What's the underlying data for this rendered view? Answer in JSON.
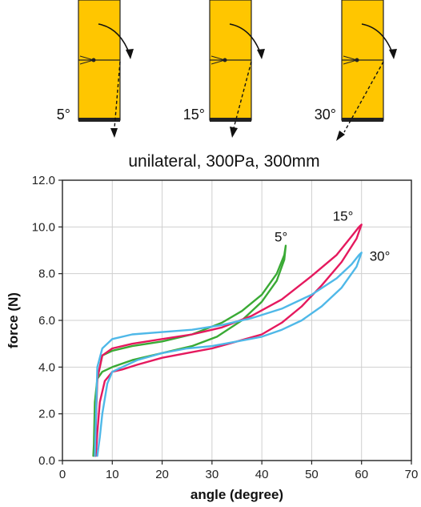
{
  "diagram": {
    "panels": [
      {
        "label": "5°",
        "angle_deg": 5
      },
      {
        "label": "15°",
        "angle_deg": 15
      },
      {
        "label": "30°",
        "angle_deg": 30
      }
    ],
    "panel_color": "#FFC600",
    "condition_text": "unilateral, 300Pa,  300mm"
  },
  "chart_data": {
    "type": "line",
    "title": "",
    "xlabel": "angle (degree)",
    "ylabel": "force (N)",
    "xlim": [
      0,
      70
    ],
    "ylim": [
      0,
      12
    ],
    "x_ticks": [
      "0",
      "10",
      "20",
      "30",
      "40",
      "50",
      "60",
      "70"
    ],
    "y_ticks": [
      "0.0",
      "2.0",
      "4.0",
      "6.0",
      "8.0",
      "10.0",
      "12.0"
    ],
    "grid": true,
    "series": [
      {
        "name": "5°",
        "color": "#3AAA35",
        "x": [
          6.2,
          6.5,
          7,
          8,
          10,
          14,
          20,
          26,
          32,
          36,
          40,
          43,
          44.5,
          44.8,
          44.5,
          43,
          40,
          36,
          31,
          26,
          20,
          14,
          10,
          8,
          7,
          6.5,
          6.3
        ],
        "y": [
          0.2,
          1.5,
          3.5,
          4.5,
          4.7,
          4.9,
          5.1,
          5.4,
          5.9,
          6.4,
          7.1,
          8.0,
          8.8,
          9.2,
          8.6,
          7.7,
          6.8,
          6.0,
          5.3,
          4.9,
          4.6,
          4.3,
          4.0,
          3.8,
          3.5,
          2.5,
          0.5
        ]
      },
      {
        "name": "15°",
        "color": "#E5195E",
        "x": [
          6.5,
          7,
          8,
          10,
          14,
          20,
          26,
          32,
          38,
          44,
          50,
          55,
          58,
          59.5,
          60,
          59,
          56,
          52,
          48,
          44,
          40,
          35,
          30,
          25,
          20,
          15,
          12,
          10,
          8.5,
          7.5,
          7,
          6.7
        ],
        "y": [
          0.2,
          3.5,
          4.5,
          4.8,
          5.0,
          5.2,
          5.4,
          5.7,
          6.2,
          6.9,
          7.9,
          8.8,
          9.6,
          10.0,
          10.1,
          9.5,
          8.5,
          7.5,
          6.6,
          5.9,
          5.4,
          5.1,
          4.8,
          4.6,
          4.4,
          4.1,
          3.9,
          3.8,
          3.4,
          2.5,
          1.2,
          0.2
        ]
      },
      {
        "name": "30°",
        "color": "#4FB8E8",
        "x": [
          6.5,
          7,
          8,
          10,
          14,
          20,
          26,
          32,
          38,
          44,
          50,
          55,
          58,
          59.5,
          60,
          59,
          56,
          52,
          48,
          44,
          40,
          35,
          30,
          25,
          20,
          15,
          12,
          10,
          9,
          8,
          7.5,
          7
        ],
        "y": [
          0.2,
          4.0,
          4.8,
          5.2,
          5.4,
          5.5,
          5.6,
          5.8,
          6.1,
          6.5,
          7.1,
          7.8,
          8.4,
          8.8,
          8.9,
          8.3,
          7.4,
          6.6,
          6.0,
          5.6,
          5.3,
          5.1,
          4.9,
          4.8,
          4.6,
          4.3,
          4.0,
          3.8,
          3.3,
          2.0,
          1.0,
          0.2
        ]
      }
    ]
  }
}
